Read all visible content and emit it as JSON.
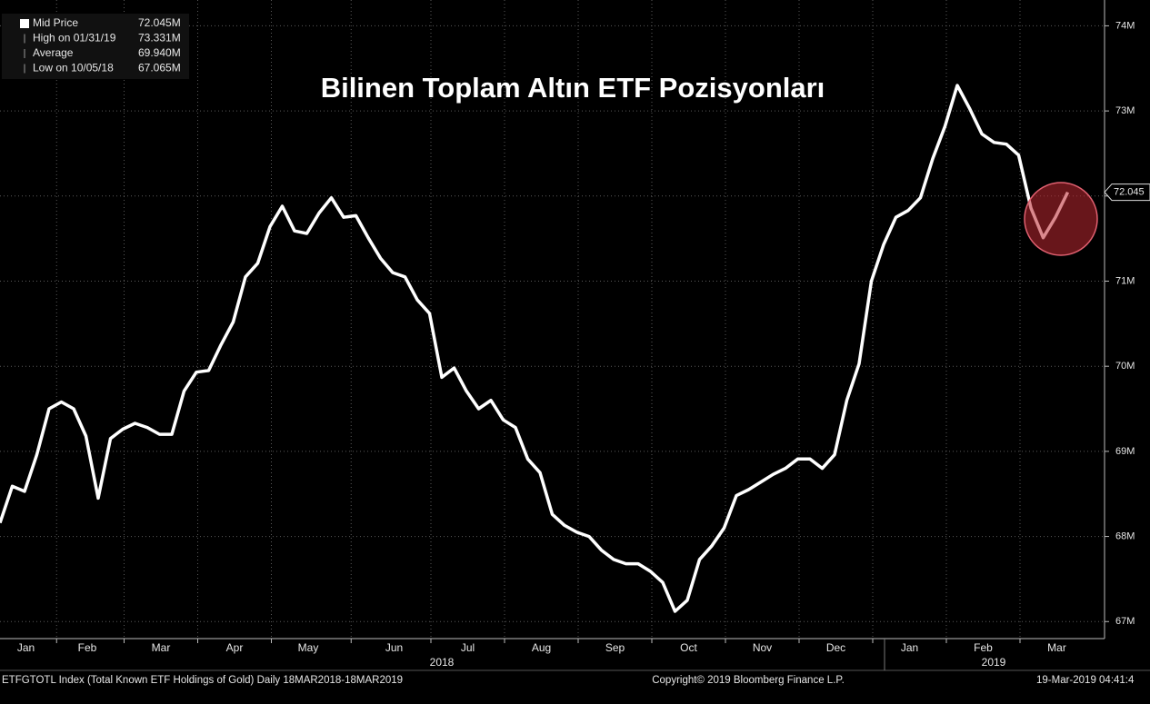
{
  "chart_data": {
    "type": "line",
    "title": "Bilinen Toplam Altın ETF Pozisyonları",
    "categories": [
      null,
      null,
      null,
      "Jan",
      null,
      null,
      null,
      null,
      "Feb",
      null,
      null,
      null,
      null,
      null,
      "Mar",
      null,
      null,
      null,
      null,
      null,
      "Apr",
      null,
      null,
      null,
      null,
      null,
      "May",
      null,
      null,
      null,
      null,
      null,
      null,
      "Jun",
      null,
      null,
      null,
      null,
      null,
      "Jul",
      null,
      null,
      null,
      null,
      null,
      "Aug",
      null,
      null,
      null,
      null,
      null,
      "Sep",
      null,
      null,
      null,
      null,
      null,
      "Oct",
      null,
      null,
      null,
      null,
      null,
      "Nov",
      null,
      null,
      null,
      null,
      null,
      "Dec",
      null,
      null,
      null,
      null,
      null,
      "Jan",
      null,
      null,
      null,
      null,
      null,
      "Feb",
      null,
      null,
      null,
      null,
      null,
      "Mar"
    ],
    "year_labels": [
      "2018",
      "2019"
    ],
    "series": [
      {
        "name": "Mid Price",
        "color": "#ffffff",
        "values": [
          68.16,
          68.59,
          68.53,
          68.96,
          69.5,
          69.58,
          69.5,
          69.18,
          68.45,
          69.15,
          69.26,
          69.33,
          69.28,
          69.2,
          69.2,
          69.71,
          69.93,
          69.95,
          70.25,
          70.52,
          71.05,
          71.21,
          71.64,
          71.88,
          71.59,
          71.56,
          71.8,
          71.98,
          71.75,
          71.77,
          71.51,
          71.27,
          71.1,
          71.05,
          70.78,
          70.62,
          69.87,
          69.98,
          69.71,
          69.5,
          69.6,
          69.37,
          69.28,
          68.91,
          68.75,
          68.26,
          68.13,
          68.05,
          68.0,
          67.84,
          67.73,
          67.68,
          67.68,
          67.59,
          67.46,
          67.12,
          67.25,
          67.73,
          67.89,
          68.1,
          68.48,
          68.55,
          68.64,
          68.73,
          68.8,
          68.91,
          68.91,
          68.8,
          68.96,
          69.6,
          70.03,
          71.0,
          71.43,
          71.75,
          71.83,
          71.98,
          72.44,
          72.82,
          73.3,
          73.03,
          72.73,
          72.63,
          72.61,
          72.48,
          71.86,
          71.51,
          71.75,
          72.045
        ]
      }
    ],
    "stats": [
      {
        "label": "Mid Price",
        "value": "72.045M"
      },
      {
        "label": "High on 01/31/19",
        "value": "73.331M"
      },
      {
        "label": "Average",
        "value": "69.940M"
      },
      {
        "label": "Low on 10/05/18",
        "value": "67.065M"
      }
    ],
    "last_value_label": "72.045",
    "ylim": [
      66.8,
      74.25
    ],
    "yticks": [
      {
        "value": 67,
        "label": "67M"
      },
      {
        "value": 68,
        "label": "68M"
      },
      {
        "value": 69,
        "label": "69M"
      },
      {
        "value": 70,
        "label": "70M"
      },
      {
        "value": 71,
        "label": "71M"
      },
      {
        "value": 72,
        "label": "72M"
      },
      {
        "value": 73,
        "label": "73M"
      },
      {
        "value": 74,
        "label": "74M"
      }
    ],
    "grid": true,
    "footer": {
      "left": "ETFGTOTL Index (Total Known ETF Holdings of Gold)  Daily 18MAR2018-18MAR2019",
      "center": "Copyright© 2019 Bloomberg Finance L.P.",
      "right": "19-Mar-2019 04:41:4"
    }
  }
}
